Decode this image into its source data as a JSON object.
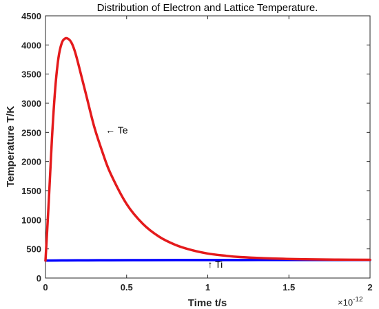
{
  "chart_data": {
    "type": "line",
    "title": "Distribution of Electron and Lattice Temperature.",
    "xlabel": "Time t/s",
    "ylabel": "Temperature T/K",
    "x_exponent_base": "×10",
    "x_exponent_power": "-12",
    "xlim": [
      0,
      2
    ],
    "ylim": [
      0,
      4500
    ],
    "xticks": [
      0,
      0.5,
      1,
      1.5,
      2
    ],
    "xtick_labels": [
      "0",
      "0.5",
      "1",
      "1.5",
      "2"
    ],
    "yticks": [
      0,
      500,
      1000,
      1500,
      2000,
      2500,
      3000,
      3500,
      4000,
      4500
    ],
    "ytick_labels": [
      "0",
      "500",
      "1000",
      "1500",
      "2000",
      "2500",
      "3000",
      "3500",
      "4000",
      "4500"
    ],
    "grid": false,
    "series": [
      {
        "name": "Te",
        "color": "#e41a1c",
        "x": [
          0,
          0.02,
          0.04,
          0.06,
          0.08,
          0.1,
          0.12,
          0.14,
          0.16,
          0.18,
          0.2,
          0.25,
          0.3,
          0.35,
          0.4,
          0.5,
          0.6,
          0.7,
          0.8,
          0.9,
          1.0,
          1.1,
          1.2,
          1.4,
          1.6,
          1.8,
          2.0
        ],
        "values": [
          300,
          1300,
          2400,
          3250,
          3780,
          4030,
          4110,
          4105,
          4040,
          3900,
          3700,
          3150,
          2600,
          2170,
          1800,
          1270,
          930,
          710,
          570,
          480,
          420,
          385,
          360,
          335,
          322,
          316,
          313
        ]
      },
      {
        "name": "Ti",
        "color": "#0000ff",
        "x": [
          0,
          0.1,
          0.2,
          0.4,
          0.6,
          0.8,
          1.0,
          1.2,
          1.4,
          1.6,
          1.8,
          2.0
        ],
        "values": [
          300,
          302,
          304,
          306,
          307,
          308,
          309,
          309,
          310,
          310,
          310,
          310
        ]
      }
    ],
    "annotations": [
      {
        "text": "← Te",
        "x": 0.37,
        "y": 2480
      },
      {
        "text": "↑ Ti",
        "x": 1.0,
        "y": 180
      }
    ]
  }
}
